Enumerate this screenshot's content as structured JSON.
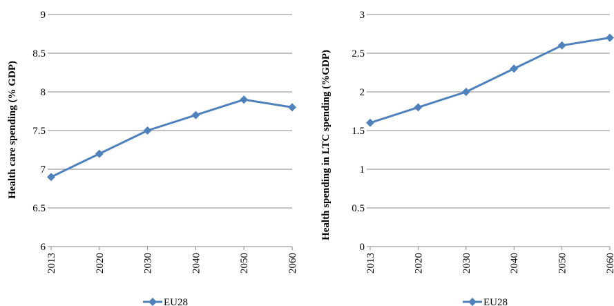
{
  "chart_data": [
    {
      "type": "line",
      "title": "",
      "xlabel": "",
      "ylabel": "Health care spending (% GDP)",
      "categories": [
        "2013",
        "2020",
        "2030",
        "2040",
        "2050",
        "2060"
      ],
      "series": [
        {
          "name": "EU28",
          "values": [
            6.9,
            7.2,
            7.5,
            7.7,
            7.9,
            7.8
          ]
        }
      ],
      "ylim": [
        6,
        9
      ],
      "yticks": [
        "6",
        "6.5",
        "7",
        "7.5",
        "8",
        "8.5",
        "9"
      ],
      "grid": true,
      "legend": "bottom",
      "color": "#4f81bd"
    },
    {
      "type": "line",
      "title": "",
      "xlabel": "",
      "ylabel": "Health spending in LTC spending (%GDP)",
      "categories": [
        "2013",
        "2020",
        "2030",
        "2040",
        "2050",
        "2060"
      ],
      "series": [
        {
          "name": "EU28",
          "values": [
            1.6,
            1.8,
            2.0,
            2.3,
            2.6,
            2.7
          ]
        }
      ],
      "ylim": [
        0,
        3
      ],
      "yticks": [
        "0",
        "0.5",
        "1",
        "1.5",
        "2",
        "2.5",
        "3"
      ],
      "grid": true,
      "legend": "bottom",
      "color": "#4f81bd"
    }
  ]
}
